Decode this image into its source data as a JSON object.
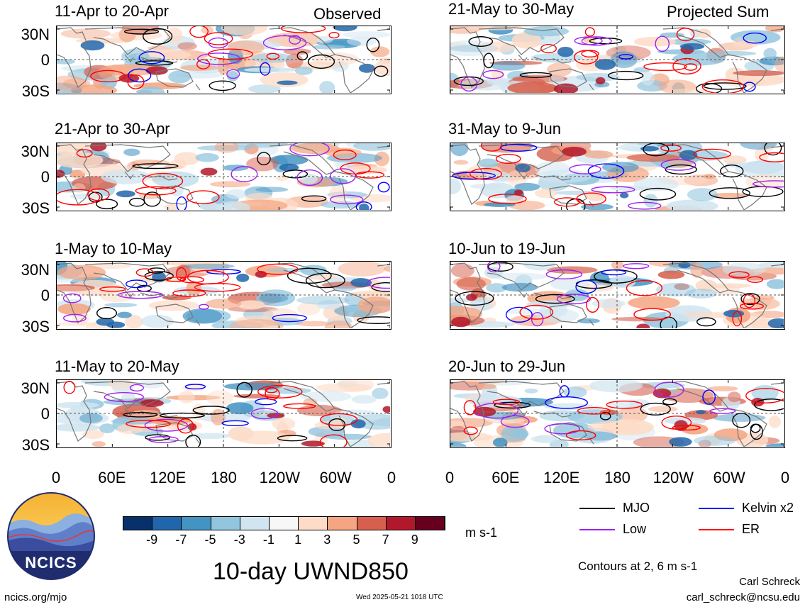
{
  "header": {
    "left_label": "Observed",
    "right_label": "Projected Sum"
  },
  "panels_left": [
    {
      "title": "11-Apr to 20-Apr"
    },
    {
      "title": "21-Apr to 30-Apr"
    },
    {
      "title": "1-May to 10-May"
    },
    {
      "title": "11-May to 20-May"
    }
  ],
  "panels_right": [
    {
      "title": "21-May to 30-May"
    },
    {
      "title": "31-May to 9-Jun"
    },
    {
      "title": "10-Jun to 19-Jun"
    },
    {
      "title": "20-Jun to 29-Jun"
    }
  ],
  "axes": {
    "y_ticks": [
      "30N",
      "0",
      "30S"
    ],
    "x_ticks": [
      "0",
      "60E",
      "120E",
      "180",
      "120W",
      "60W",
      "0"
    ]
  },
  "colorbar": {
    "labels": [
      "-9",
      "-7",
      "-5",
      "-3",
      "-1",
      "1",
      "3",
      "5",
      "7",
      "9"
    ],
    "units": "m s-1",
    "colors": [
      "#08306b",
      "#2166ac",
      "#4393c3",
      "#92c5de",
      "#d1e5f0",
      "#f7f7f7",
      "#fddbc7",
      "#f4a582",
      "#d6604d",
      "#b2182b",
      "#67001f"
    ]
  },
  "legend": {
    "items": [
      {
        "label": "MJO",
        "color": "#000000"
      },
      {
        "label": "Kelvin x2",
        "color": "#0000ff"
      },
      {
        "label": "Low",
        "color": "#a020f0"
      },
      {
        "label": "ER",
        "color": "#ff0000"
      }
    ],
    "contours_note": "Contours at 2, 6 m s-1"
  },
  "footer": {
    "main_title": "10-day UWND850",
    "website": "ncics.org/mjo",
    "timestamp": "Wed 2025-05-21 1018 UTC",
    "author": "Carl Schreck",
    "email": "carl_schreck@ncsu.edu",
    "logo_text": "NCICS"
  },
  "chart_data": {
    "type": "heatmap",
    "variable": "10-day UWND850",
    "units": "m s-1",
    "x_ticks": [
      "0",
      "60E",
      "120E",
      "180",
      "120W",
      "60W",
      "0"
    ],
    "y_ticks": [
      "30N",
      "0",
      "30S"
    ],
    "xlim": [
      0,
      360
    ],
    "ylim": [
      -40,
      40
    ],
    "color_levels": [
      -9,
      -7,
      -5,
      -3,
      -1,
      1,
      3,
      5,
      7,
      9
    ],
    "contour_levels": [
      2,
      6
    ],
    "contour_series": [
      "MJO",
      "Kelvin x2",
      "Low",
      "ER"
    ],
    "panels": [
      {
        "title": "11-Apr to 20-Apr",
        "group": "Observed"
      },
      {
        "title": "21-Apr to 30-Apr",
        "group": "Observed"
      },
      {
        "title": "1-May to 10-May",
        "group": "Observed"
      },
      {
        "title": "11-May to 20-May",
        "group": "Observed"
      },
      {
        "title": "21-May to 30-May",
        "group": "Projected Sum"
      },
      {
        "title": "31-May to 9-Jun",
        "group": "Projected Sum"
      },
      {
        "title": "10-Jun to 19-Jun",
        "group": "Projected Sum"
      },
      {
        "title": "20-Jun to 29-Jun",
        "group": "Projected Sum"
      }
    ]
  }
}
